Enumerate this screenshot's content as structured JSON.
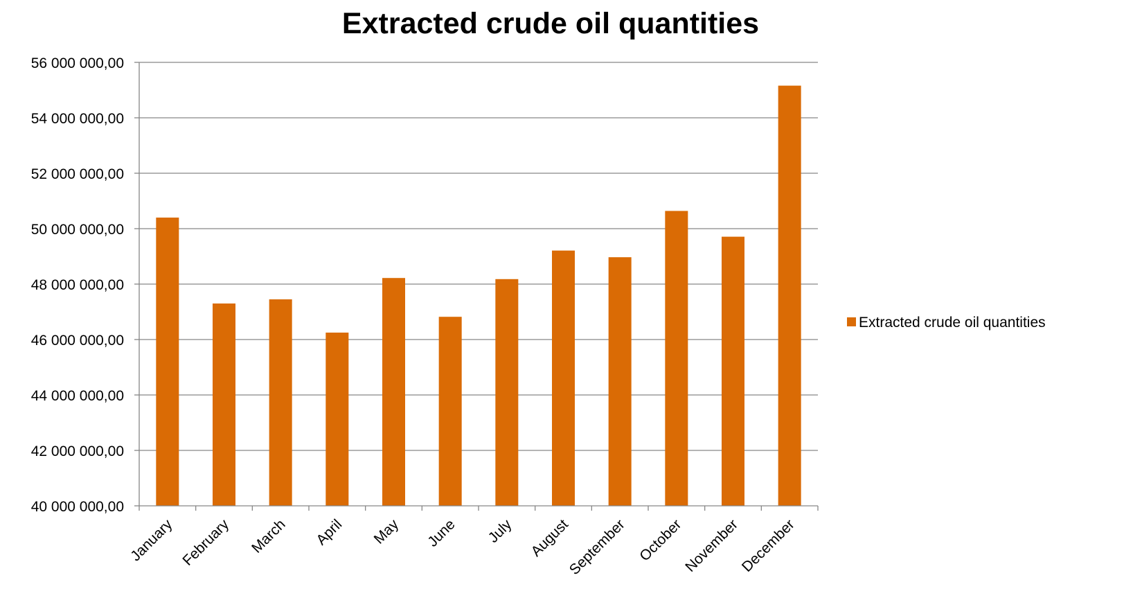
{
  "chart_data": {
    "type": "bar",
    "title": "Extracted crude oil quantities",
    "xlabel": "",
    "ylabel": "",
    "categories": [
      "January",
      "February",
      "March",
      "April",
      "May",
      "June",
      "July",
      "August",
      "September",
      "October",
      "November",
      "December"
    ],
    "series": [
      {
        "name": "Extracted crude oil quantities",
        "color": "#DA6B05",
        "values": [
          50400000,
          47300000,
          47450000,
          46250000,
          48220000,
          46820000,
          48180000,
          49210000,
          48970000,
          50640000,
          49710000,
          55160000
        ]
      }
    ],
    "ylim": [
      40000000,
      56000000
    ],
    "yticks": [
      40000000,
      42000000,
      44000000,
      46000000,
      48000000,
      50000000,
      52000000,
      54000000,
      56000000
    ],
    "ytick_labels": [
      "40 000 000,00",
      "42 000 000,00",
      "44 000 000,00",
      "46 000 000,00",
      "48 000 000,00",
      "50 000 000,00",
      "52 000 000,00",
      "54 000 000,00",
      "56 000 000,00"
    ],
    "grid": "horizontal",
    "legend_position": "right",
    "colors": {
      "gridline": "#868686",
      "axis": "#868686"
    }
  }
}
